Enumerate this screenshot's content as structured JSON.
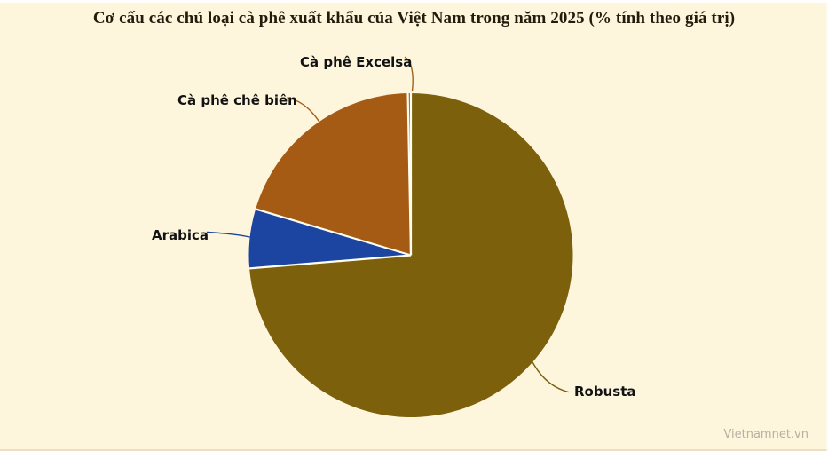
{
  "title": "Cơ cấu các chủ loại cà phê xuất khẩu của Việt Nam trong năm 2025 (% tính theo giá trị)",
  "watermark": "Vietnamnet.vn",
  "colors": {
    "background": "#FDF5DC",
    "title_text": "#241B0C",
    "label_text": "#121212",
    "separator": "#FFFDF0",
    "watermark": "#B6B0A2"
  },
  "chart_data": {
    "type": "pie",
    "title": "Cơ cấu các chủ loại cà phê xuất khẩu của Việt Nam trong năm 2025 (% tính theo giá trị)",
    "unit": "%",
    "value_labels_visible": false,
    "values_estimated_from_arc_angles": true,
    "start": "12 o'clock, clockwise",
    "legend_position": "none (direct labels with leader lines)",
    "segments": [
      {
        "id": "robusta",
        "label": "Robusta",
        "value": 73.7,
        "color": "#7D600C"
      },
      {
        "id": "arabica",
        "label": "Arabica",
        "value": 5.9,
        "color": "#1B45A1"
      },
      {
        "id": "che-bien",
        "label": "Cà phê chê biên",
        "value": 20.1,
        "color": "#A65B15"
      },
      {
        "id": "excelsa",
        "label": "Cà phê Excelsa",
        "value": 0.3,
        "color": "#9C6420"
      }
    ]
  }
}
